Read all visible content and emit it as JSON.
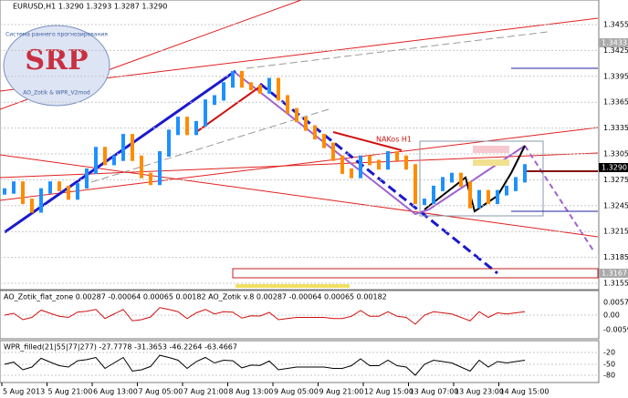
{
  "header": {
    "symbol_line": "EURUSD,H1  1.3290 1.3293 1.3287 1.3290"
  },
  "logo": {
    "title": "SRP",
    "subtitle": "Система раннего прогнозирования",
    "footer": "AO_Zotik & WPR_V2mod"
  },
  "annotation": "NAKos H1",
  "price_axis": {
    "ticks": [
      "1.3455",
      "1.3425",
      "1.3395",
      "1.3365",
      "1.3335",
      "1.3305",
      "1.3275",
      "1.3245",
      "1.3215",
      "1.3185",
      "1.3155"
    ],
    "tick_values": [
      1.3455,
      1.3425,
      1.3395,
      1.3365,
      1.3335,
      1.3305,
      1.3275,
      1.3245,
      1.3215,
      1.3185,
      1.3155
    ],
    "highlight_top": "1.3433",
    "current": "1.3290",
    "highlight_bottom": "1.3167"
  },
  "price_closes": [
    1.3262,
    1.327,
    1.325,
    1.324,
    1.3262,
    1.327,
    1.3265,
    1.3255,
    1.3268,
    1.3285,
    1.331,
    1.3295,
    1.33,
    1.3325,
    1.33,
    1.328,
    1.3272,
    1.3305,
    1.333,
    1.3345,
    1.333,
    1.334,
    1.3365,
    1.337,
    1.3385,
    1.3398,
    1.3385,
    1.3382,
    1.3378,
    1.339,
    1.337,
    1.3355,
    1.3345,
    1.3335,
    1.3325,
    1.3315,
    1.33,
    1.3285,
    1.328,
    1.33,
    1.3295,
    1.329,
    1.3305,
    1.33,
    1.329,
    1.325,
    1.325,
    1.3265,
    1.3275,
    1.328,
    1.327,
    1.3245,
    1.326,
    1.325,
    1.326,
    1.3265,
    1.3275,
    1.329
  ],
  "ao_panel": {
    "label": "AO_Zotik_flat_zone 0.00287 -0.00064 0.00065 0.00182  AO_Zotik v.8 0.00287 -0.00064 0.00065 0.00182",
    "ticks": [
      "0.0057",
      "0.00",
      "-0.0059"
    ]
  },
  "wpr_panel": {
    "label": "WPR_filled(21|55|77|277) -27.7778 -31.3653 -46.2264 -63.4667",
    "ticks": [
      "-20",
      "-50",
      "-80"
    ]
  },
  "time_axis": [
    "5 Aug 2013",
    "5 Aug 21:00",
    "6 Aug 13:00",
    "7 Aug 05:00",
    "7 Aug 21:00",
    "8 Aug 13:00",
    "9 Aug 05:00",
    "9 Aug 21:00",
    "12 Aug 15:00",
    "13 Aug 07:00",
    "13 Aug 23:00",
    "14 Aug 15:00"
  ]
}
